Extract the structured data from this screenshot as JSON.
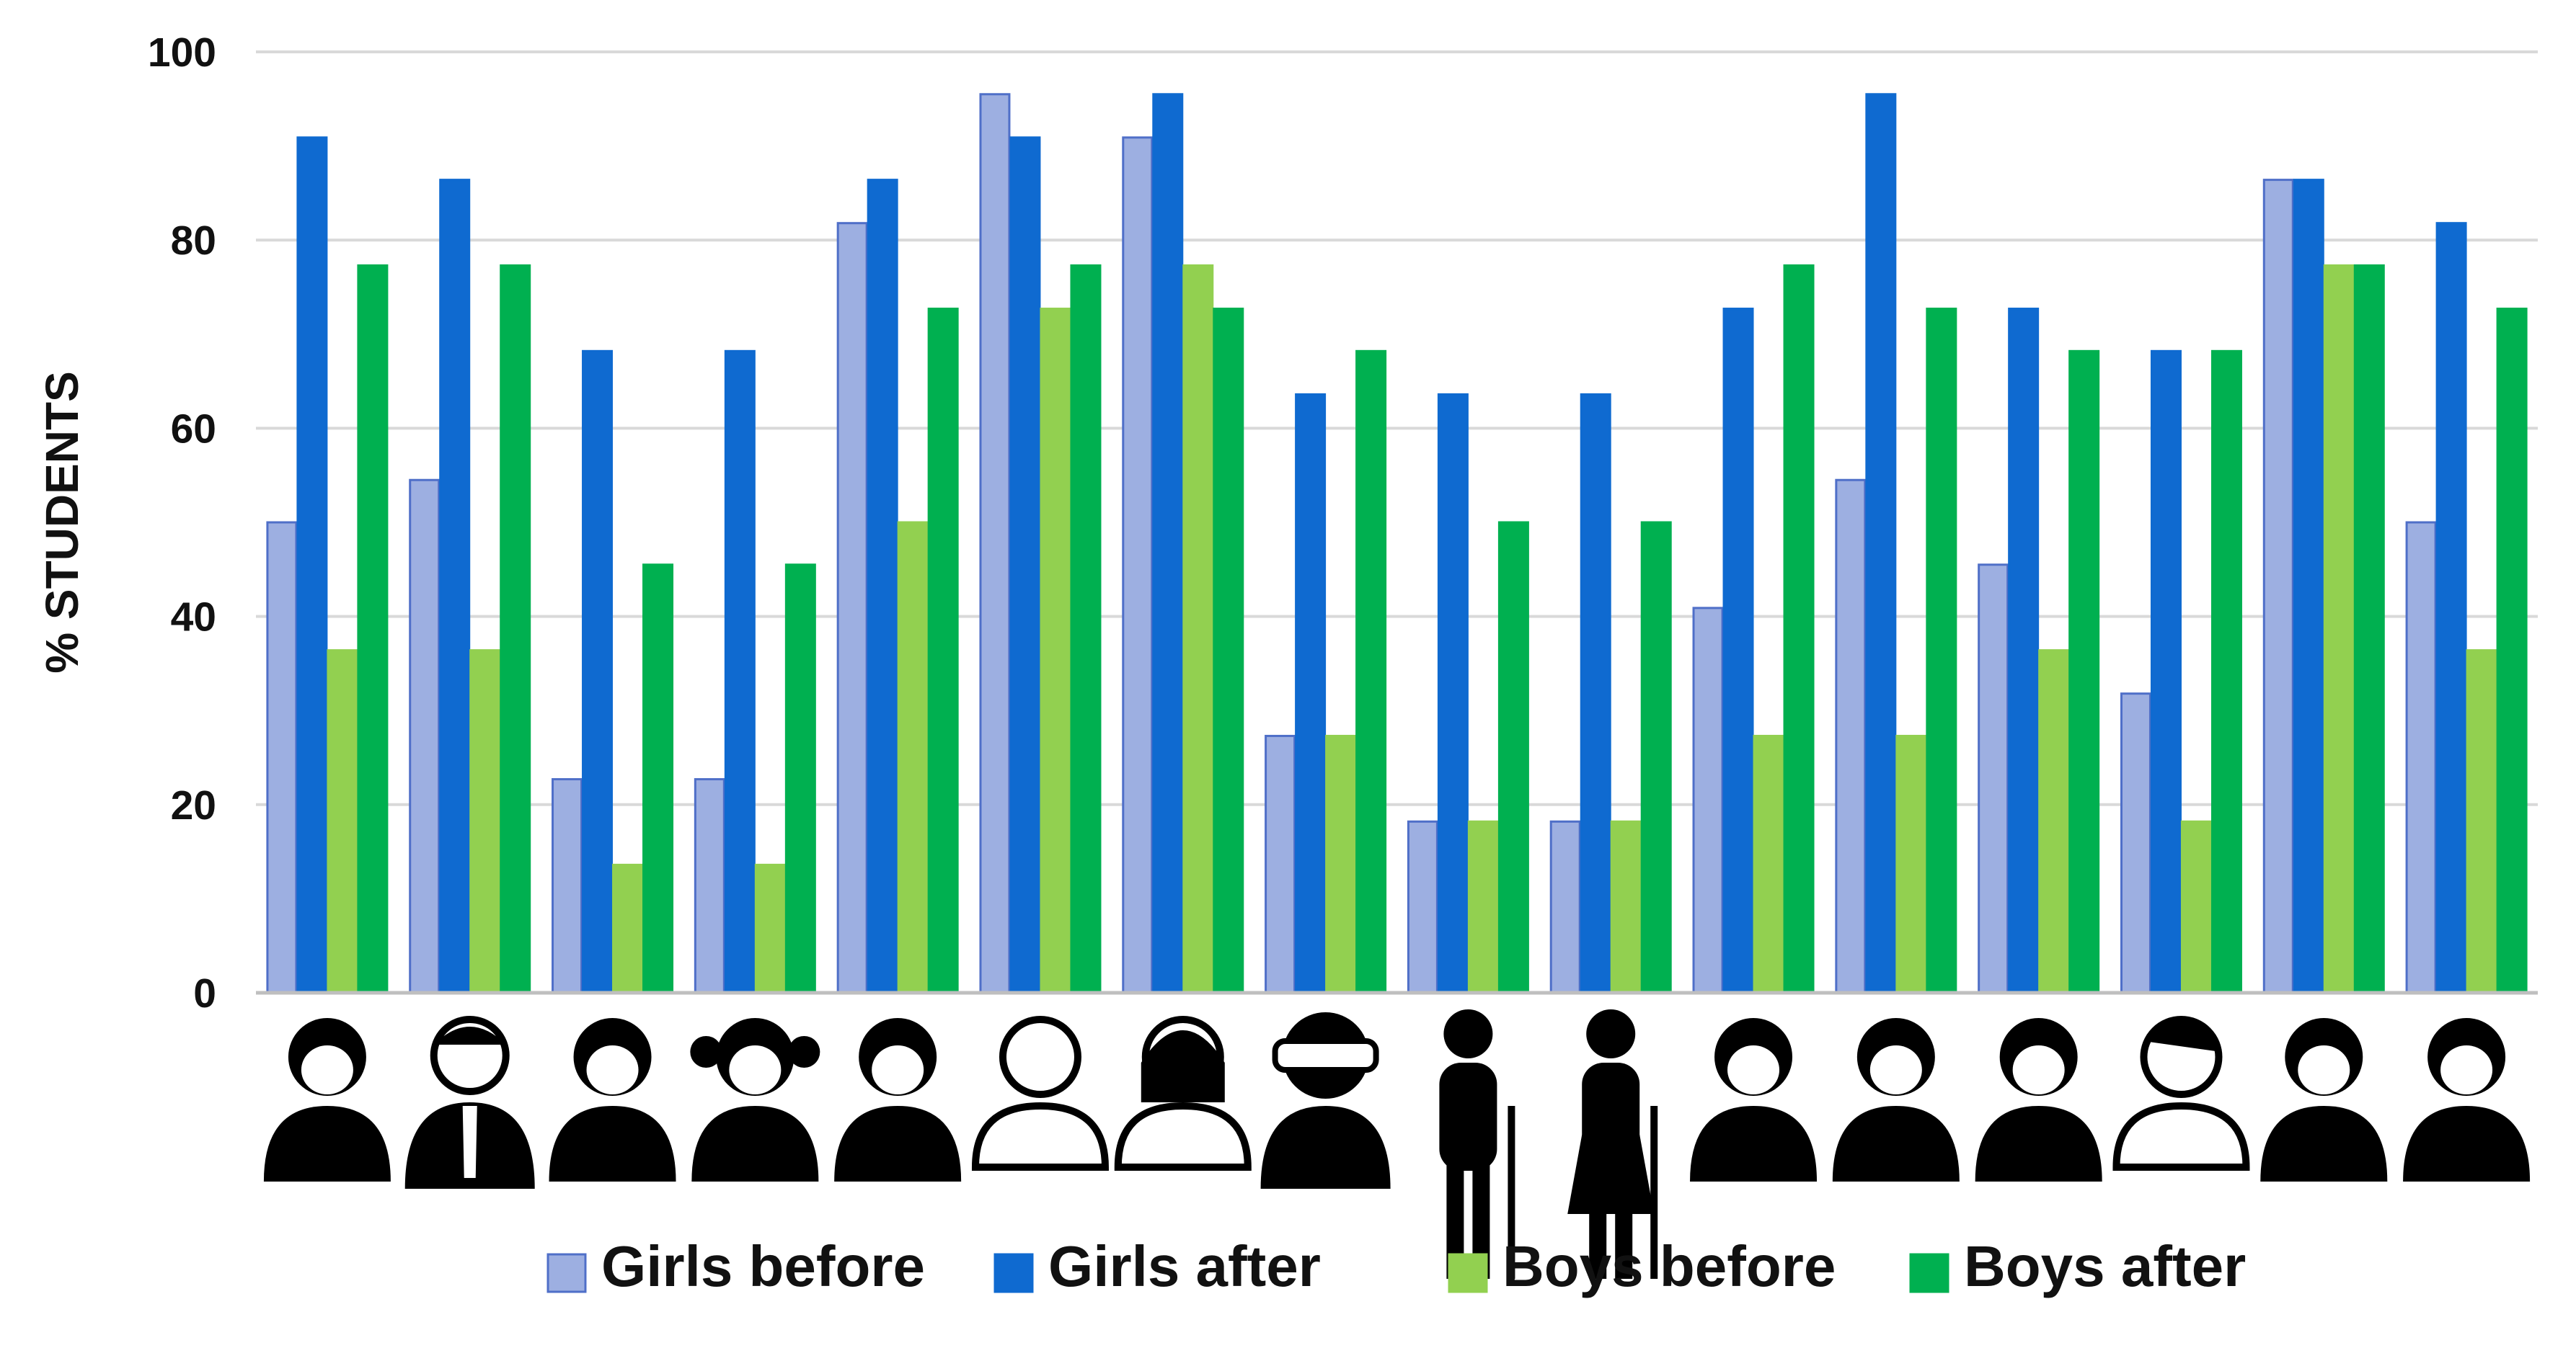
{
  "chart_data": {
    "type": "bar",
    "title": "",
    "xlabel": "",
    "ylabel": "% STUDENTS",
    "ylim": [
      0,
      100
    ],
    "yticks": [
      0,
      20,
      40,
      60,
      80,
      100
    ],
    "grid": true,
    "legend_position": "bottom",
    "categories": [
      "woman-portrait",
      "man-in-suit",
      "boy",
      "girl-pigtails",
      "woman-glasses",
      "bald-man-mustache",
      "woman-badge",
      "person-vr-headset",
      "elderly-man-cane",
      "elderly-woman-cane",
      "woman-long-hair",
      "woman-hair",
      "bearded-man",
      "young-man-tousled-hair",
      "angry-bald-man",
      "man-short-hair"
    ],
    "series": [
      {
        "name": "Girls before",
        "color": "#9dafe1",
        "stroke": "#4f6fc8",
        "values": [
          50,
          54.5,
          22.7,
          22.7,
          81.8,
          95.5,
          90.9,
          27.3,
          18.2,
          18.2,
          40.9,
          54.5,
          45.5,
          31.8,
          86.4,
          50
        ]
      },
      {
        "name": "Girls after",
        "color": "#0f6ad0",
        "stroke": "#0f6ad0",
        "values": [
          90.9,
          86.4,
          68.2,
          68.2,
          86.4,
          90.9,
          95.5,
          63.6,
          63.6,
          63.6,
          72.7,
          95.5,
          72.7,
          68.2,
          86.4,
          81.8
        ]
      },
      {
        "name": "Boys before",
        "color": "#92d050",
        "stroke": "#92d050",
        "values": [
          36.4,
          36.4,
          13.6,
          13.6,
          50,
          72.7,
          77.3,
          27.3,
          18.2,
          18.2,
          27.3,
          27.3,
          36.4,
          18.2,
          77.3,
          36.4
        ]
      },
      {
        "name": "Boys after",
        "color": "#00b050",
        "stroke": "#00b050",
        "values": [
          77.3,
          77.3,
          45.5,
          45.5,
          72.7,
          77.3,
          72.7,
          68.2,
          50,
          50,
          77.3,
          72.7,
          68.2,
          68.2,
          77.3,
          72.7
        ]
      }
    ]
  }
}
